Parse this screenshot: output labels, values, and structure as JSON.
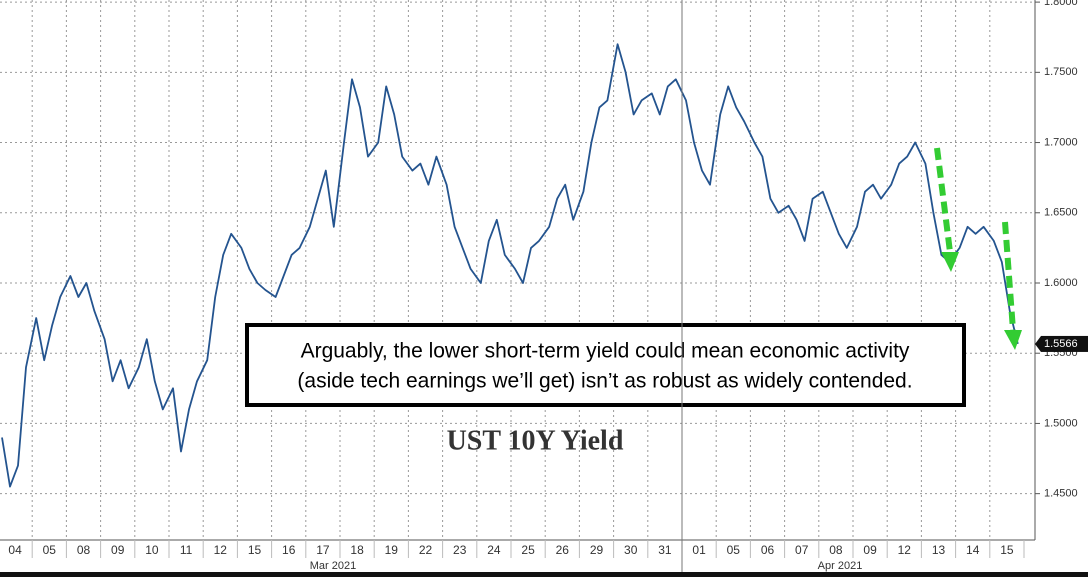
{
  "chart_data": {
    "type": "line",
    "title": "UST 10Y Yield",
    "annotation": [
      "Arguably, the lower short-term yield could mean economic activity",
      "(aside tech earnings we’ll get) isn’t as robust as widely contended."
    ],
    "categories": [
      "04",
      "05",
      "08",
      "09",
      "10",
      "11",
      "12",
      "15",
      "16",
      "17",
      "18",
      "19",
      "22",
      "23",
      "24",
      "25",
      "26",
      "29",
      "30",
      "31",
      "01",
      "05",
      "06",
      "07",
      "08",
      "09",
      "12",
      "13",
      "14",
      "15"
    ],
    "month_labels": [
      "Mar 2021",
      "Apr 2021"
    ],
    "values": [
      [
        1.49,
        1.455,
        1.47,
        1.54
      ],
      [
        1.575,
        1.545,
        1.57,
        1.59
      ],
      [
        1.605,
        1.59,
        1.6,
        1.58
      ],
      [
        1.56,
        1.53,
        1.545,
        1.525
      ],
      [
        1.54,
        1.56,
        1.53,
        1.51
      ],
      [
        1.525,
        1.48,
        1.51,
        1.53
      ],
      [
        1.545,
        1.59,
        1.62,
        1.635
      ],
      [
        1.625,
        1.61,
        1.6,
        1.595
      ],
      [
        1.59,
        1.605,
        1.62,
        1.625
      ],
      [
        1.64,
        1.66,
        1.68,
        1.64
      ],
      [
        1.7,
        1.745,
        1.725,
        1.69
      ],
      [
        1.7,
        1.74,
        1.72,
        1.69
      ],
      [
        1.68,
        1.685,
        1.67,
        1.69
      ],
      [
        1.67,
        1.64,
        1.625,
        1.61
      ],
      [
        1.6,
        1.63,
        1.645,
        1.62
      ],
      [
        1.61,
        1.6,
        1.625,
        1.63
      ],
      [
        1.64,
        1.66,
        1.67,
        1.645
      ],
      [
        1.665,
        1.7,
        1.725,
        1.73
      ],
      [
        1.77,
        1.75,
        1.72,
        1.73
      ],
      [
        1.735,
        1.72,
        1.74,
        1.745
      ],
      [
        1.73,
        1.7,
        1.68,
        1.67
      ],
      [
        1.72,
        1.74,
        1.725,
        1.715
      ],
      [
        1.7,
        1.69,
        1.66,
        1.65
      ],
      [
        1.655,
        1.645,
        1.63,
        1.66
      ],
      [
        1.665,
        1.65,
        1.635,
        1.625
      ],
      [
        1.64,
        1.665,
        1.67,
        1.66
      ],
      [
        1.67,
        1.685,
        1.69,
        1.7
      ],
      [
        1.685,
        1.65,
        1.62,
        1.615
      ],
      [
        1.625,
        1.64,
        1.635,
        1.64
      ],
      [
        1.63,
        1.615,
        1.58,
        1.5566
      ]
    ],
    "last_label": "1.5566",
    "color": "#24548f",
    "ylim": [
      1.417,
      1.8015
    ],
    "yticks": [
      {
        "value": 1.45,
        "label": "1.4500"
      },
      {
        "value": 1.5,
        "label": "1.5000"
      },
      {
        "value": 1.55,
        "label": "1.5500"
      },
      {
        "value": 1.6,
        "label": "1.6000"
      },
      {
        "value": 1.65,
        "label": "1.6500"
      },
      {
        "value": 1.7,
        "label": "1.7000"
      },
      {
        "value": 1.75,
        "label": "1.7500"
      },
      {
        "value": 1.8,
        "label": "1.8000"
      }
    ],
    "grid": true
  }
}
